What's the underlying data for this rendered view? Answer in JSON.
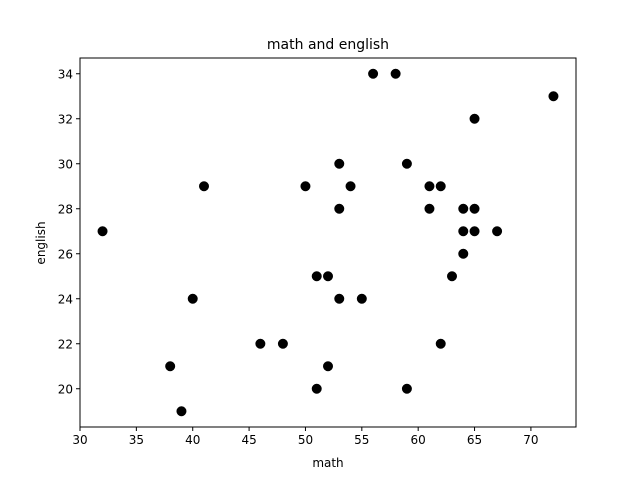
{
  "chart_data": {
    "type": "scatter",
    "title": "math and english",
    "xlabel": "math",
    "ylabel": "english",
    "xlim": [
      30,
      74
    ],
    "ylim": [
      18.3,
      34.7
    ],
    "xticks": [
      "30",
      "35",
      "40",
      "45",
      "50",
      "55",
      "60",
      "65",
      "70"
    ],
    "yticks": [
      "20",
      "22",
      "24",
      "26",
      "28",
      "30",
      "32",
      "34"
    ],
    "grid": false,
    "marker_color": "#000000",
    "series": [
      {
        "points": [
          {
            "x": 32,
            "y": 27
          },
          {
            "x": 38,
            "y": 21
          },
          {
            "x": 39,
            "y": 19
          },
          {
            "x": 40,
            "y": 24
          },
          {
            "x": 41,
            "y": 29
          },
          {
            "x": 46,
            "y": 22
          },
          {
            "x": 48,
            "y": 22
          },
          {
            "x": 50,
            "y": 29
          },
          {
            "x": 51,
            "y": 25
          },
          {
            "x": 51,
            "y": 20
          },
          {
            "x": 52,
            "y": 25
          },
          {
            "x": 52,
            "y": 21
          },
          {
            "x": 53,
            "y": 30
          },
          {
            "x": 53,
            "y": 28
          },
          {
            "x": 53,
            "y": 24
          },
          {
            "x": 54,
            "y": 29
          },
          {
            "x": 55,
            "y": 24
          },
          {
            "x": 56,
            "y": 34
          },
          {
            "x": 58,
            "y": 34
          },
          {
            "x": 59,
            "y": 30
          },
          {
            "x": 59,
            "y": 20
          },
          {
            "x": 61,
            "y": 29
          },
          {
            "x": 61,
            "y": 28
          },
          {
            "x": 62,
            "y": 29
          },
          {
            "x": 62,
            "y": 22
          },
          {
            "x": 63,
            "y": 25
          },
          {
            "x": 64,
            "y": 28
          },
          {
            "x": 64,
            "y": 27
          },
          {
            "x": 64,
            "y": 26
          },
          {
            "x": 65,
            "y": 32
          },
          {
            "x": 65,
            "y": 28
          },
          {
            "x": 65,
            "y": 27
          },
          {
            "x": 67,
            "y": 27
          },
          {
            "x": 72,
            "y": 33
          }
        ]
      }
    ]
  }
}
